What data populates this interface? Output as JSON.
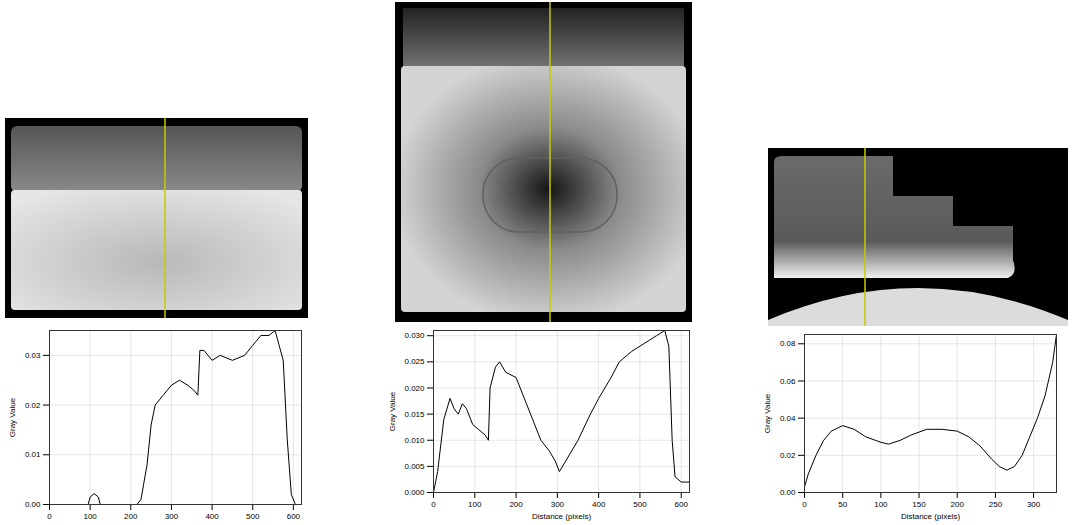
{
  "chart_data": [
    {
      "type": "line",
      "y_label": "Gray Value",
      "color": "#000000",
      "grid": true,
      "x": [
        0,
        95,
        100,
        110,
        120,
        125,
        215,
        225,
        240,
        250,
        260,
        280,
        300,
        320,
        340,
        355,
        365,
        370,
        380,
        400,
        420,
        450,
        480,
        500,
        520,
        540,
        555,
        565,
        575,
        585,
        595,
        605,
        620
      ],
      "values": [
        0,
        0,
        0.0015,
        0.0022,
        0.0015,
        0,
        0,
        0.001,
        0.008,
        0.016,
        0.02,
        0.022,
        0.024,
        0.025,
        0.024,
        0.023,
        0.022,
        0.031,
        0.031,
        0.029,
        0.03,
        0.029,
        0.03,
        0.032,
        0.034,
        0.034,
        0.035,
        0.032,
        0.029,
        0.013,
        0.002,
        0,
        0
      ],
      "xlim": [
        0,
        620
      ],
      "ylim": [
        0,
        0.035
      ],
      "xticks": [
        0,
        100,
        200,
        300,
        400,
        500,
        600
      ],
      "yticks": [
        {
          "value": 0,
          "label": "0.00"
        },
        {
          "value": 0.01,
          "label": "0.01"
        },
        {
          "value": 0.02,
          "label": "0.02"
        },
        {
          "value": 0.03,
          "label": "0.03"
        }
      ]
    },
    {
      "type": "line",
      "x_label": "Distance (pixels)",
      "y_label": "Gray Value",
      "color": "#000000",
      "grid": true,
      "x": [
        0,
        10,
        25,
        40,
        50,
        60,
        70,
        80,
        95,
        110,
        125,
        133,
        137,
        150,
        160,
        175,
        200,
        220,
        240,
        260,
        280,
        295,
        305,
        320,
        350,
        380,
        400,
        430,
        450,
        480,
        500,
        520,
        540,
        560,
        570,
        578,
        585,
        600,
        620
      ],
      "values": [
        0,
        0.004,
        0.014,
        0.018,
        0.016,
        0.015,
        0.017,
        0.016,
        0.013,
        0.012,
        0.011,
        0.01,
        0.02,
        0.024,
        0.025,
        0.023,
        0.022,
        0.018,
        0.014,
        0.01,
        0.008,
        0.006,
        0.004,
        0.006,
        0.01,
        0.015,
        0.018,
        0.022,
        0.025,
        0.027,
        0.028,
        0.029,
        0.03,
        0.031,
        0.028,
        0.01,
        0.003,
        0.002,
        0.002
      ],
      "xlim": [
        0,
        620
      ],
      "ylim": [
        0,
        0.031
      ],
      "xticks": [
        0,
        100,
        200,
        300,
        400,
        500,
        600
      ],
      "yticks": [
        {
          "value": 0,
          "label": "0.000"
        },
        {
          "value": 0.005,
          "label": "0.005"
        },
        {
          "value": 0.01,
          "label": "0.010"
        },
        {
          "value": 0.015,
          "label": "0.015"
        },
        {
          "value": 0.02,
          "label": "0.020"
        },
        {
          "value": 0.025,
          "label": "0.025"
        },
        {
          "value": 0.03,
          "label": "0.030"
        }
      ]
    },
    {
      "type": "line",
      "x_label": "Distance (pixels)",
      "y_label": "Gray Value",
      "color": "#000000",
      "grid": true,
      "x": [
        0,
        5,
        15,
        25,
        35,
        50,
        65,
        80,
        100,
        110,
        125,
        140,
        160,
        180,
        200,
        215,
        230,
        245,
        255,
        265,
        275,
        285,
        295,
        305,
        315,
        325,
        330
      ],
      "values": [
        0.003,
        0.01,
        0.02,
        0.028,
        0.033,
        0.036,
        0.034,
        0.03,
        0.027,
        0.026,
        0.028,
        0.031,
        0.034,
        0.034,
        0.033,
        0.03,
        0.025,
        0.018,
        0.014,
        0.012,
        0.014,
        0.02,
        0.03,
        0.04,
        0.052,
        0.07,
        0.085
      ],
      "xlim": [
        0,
        330
      ],
      "ylim": [
        0,
        0.085
      ],
      "xticks": [
        0,
        50,
        100,
        150,
        200,
        250,
        300
      ],
      "yticks": [
        {
          "value": 0,
          "label": "0.00"
        },
        {
          "value": 0.02,
          "label": "0.02"
        },
        {
          "value": 0.04,
          "label": "0.04"
        },
        {
          "value": 0.06,
          "label": "0.06"
        },
        {
          "value": 0.08,
          "label": "0.08"
        }
      ]
    }
  ]
}
